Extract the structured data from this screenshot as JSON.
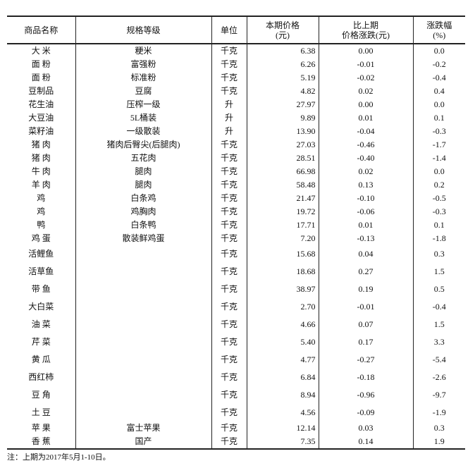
{
  "table": {
    "header": [
      [
        "商品名称"
      ],
      [
        "规格等级"
      ],
      [
        "单位"
      ],
      [
        "本期价格",
        "(元)"
      ],
      [
        "比上期",
        "价格涨跌(元)"
      ],
      [
        "涨跌幅",
        "(%)"
      ]
    ],
    "rows": [
      [
        "大 米",
        "粳米",
        "千克",
        "6.38",
        "0.00",
        "0.0"
      ],
      [
        "面 粉",
        "富强粉",
        "千克",
        "6.26",
        "-0.01",
        "-0.2"
      ],
      [
        "面 粉",
        "标准粉",
        "千克",
        "5.19",
        "-0.02",
        "-0.4"
      ],
      [
        "豆制品",
        "豆腐",
        "千克",
        "4.82",
        "0.02",
        "0.4"
      ],
      [
        "花生油",
        "压榨一级",
        "升",
        "27.97",
        "0.00",
        "0.0"
      ],
      [
        "大豆油",
        "5L桶装",
        "升",
        "9.89",
        "0.01",
        "0.1"
      ],
      [
        "菜籽油",
        "一级散装",
        "升",
        "13.90",
        "-0.04",
        "-0.3"
      ],
      [
        "猪 肉",
        "猪肉后臀尖(后腿肉)",
        "千克",
        "27.03",
        "-0.46",
        "-1.7"
      ],
      [
        "猪 肉",
        "五花肉",
        "千克",
        "28.51",
        "-0.40",
        "-1.4"
      ],
      [
        "牛 肉",
        "腿肉",
        "千克",
        "66.98",
        "0.02",
        "0.0"
      ],
      [
        "羊 肉",
        "腿肉",
        "千克",
        "58.48",
        "0.13",
        "0.2"
      ],
      [
        "鸡",
        "白条鸡",
        "千克",
        "21.47",
        "-0.10",
        "-0.5"
      ],
      [
        "鸡",
        "鸡胸肉",
        "千克",
        "19.72",
        "-0.06",
        "-0.3"
      ],
      [
        "鸭",
        "白条鸭",
        "千克",
        "17.71",
        "0.01",
        "0.1"
      ],
      [
        "鸡 蛋",
        "散装鲜鸡蛋",
        "千克",
        "7.20",
        "-0.13",
        "-1.8"
      ],
      [
        "活鲤鱼",
        null,
        "千克",
        "15.68",
        "0.04",
        "0.3"
      ],
      [
        "活草鱼",
        null,
        "千克",
        "18.68",
        "0.27",
        "1.5"
      ],
      [
        "带 鱼",
        null,
        "千克",
        "38.97",
        "0.19",
        "0.5"
      ],
      [
        "大白菜",
        null,
        "千克",
        "2.70",
        "-0.01",
        "-0.4"
      ],
      [
        "油 菜",
        null,
        "千克",
        "4.66",
        "0.07",
        "1.5"
      ],
      [
        "芹 菜",
        null,
        "千克",
        "5.40",
        "0.17",
        "3.3"
      ],
      [
        "黄 瓜",
        null,
        "千克",
        "4.77",
        "-0.27",
        "-5.4"
      ],
      [
        "西红柿",
        null,
        "千克",
        "6.84",
        "-0.18",
        "-2.6"
      ],
      [
        "豆 角",
        null,
        "千克",
        "8.94",
        "-0.96",
        "-9.7"
      ],
      [
        "土 豆",
        null,
        "千克",
        "4.56",
        "-0.09",
        "-1.9"
      ],
      [
        "苹 果",
        "富士苹果",
        "千克",
        "12.14",
        "0.03",
        "0.3"
      ],
      [
        "香 蕉",
        "国产",
        "千克",
        "7.35",
        "0.14",
        "1.9"
      ]
    ]
  },
  "note": "注：上期为2017年5月1-10日。"
}
